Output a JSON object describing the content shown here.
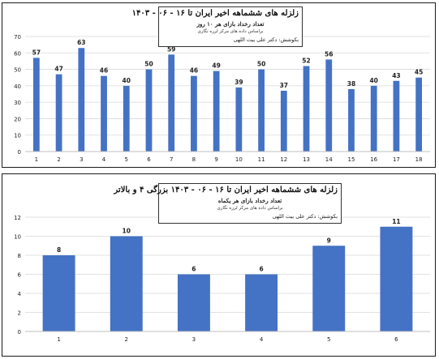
{
  "chart_data": [
    {
      "type": "bar",
      "title": "زلزله های ششماهه اخیر ایران تا ۱۶ - ۰۶ - ۱۴۰۳",
      "subtitle": "تعداد رخداد بازای هر ۱۰ روز",
      "source": "براساس داده های مرکز لرزه نگاری",
      "author": "بکوشش: دکتر علی بیت اللهی",
      "categories": [
        "1",
        "2",
        "3",
        "4",
        "5",
        "6",
        "7",
        "8",
        "9",
        "10",
        "11",
        "12",
        "13",
        "14",
        "15",
        "16",
        "17",
        "18"
      ],
      "values": [
        57,
        47,
        63,
        46,
        40,
        50,
        59,
        46,
        49,
        39,
        50,
        37,
        52,
        56,
        38,
        40,
        43,
        45
      ],
      "ylim": [
        0,
        70
      ],
      "yticks": [
        0,
        10,
        20,
        30,
        40,
        50,
        60,
        70
      ],
      "grid": true,
      "bar_color": "#4472c4"
    },
    {
      "type": "bar",
      "title": "زلزله های ششماهه اخیر ایران تا ۱۶ - ۰۶ - ۱۴۰۳ بزرگی ۴ و بالاتر",
      "subtitle": "تعداد رخداد بازای هر یکماه",
      "source": "براساس داده های مرکز لرزه نگاری",
      "author": "بکوشش: دکتر علی بیت اللهی",
      "categories": [
        "1",
        "2",
        "3",
        "4",
        "5",
        "6"
      ],
      "values": [
        8,
        10,
        6,
        6,
        9,
        11
      ],
      "ylim": [
        0,
        12
      ],
      "yticks": [
        0,
        2,
        4,
        6,
        8,
        10,
        12
      ],
      "grid": true,
      "bar_color": "#4472c4"
    }
  ]
}
